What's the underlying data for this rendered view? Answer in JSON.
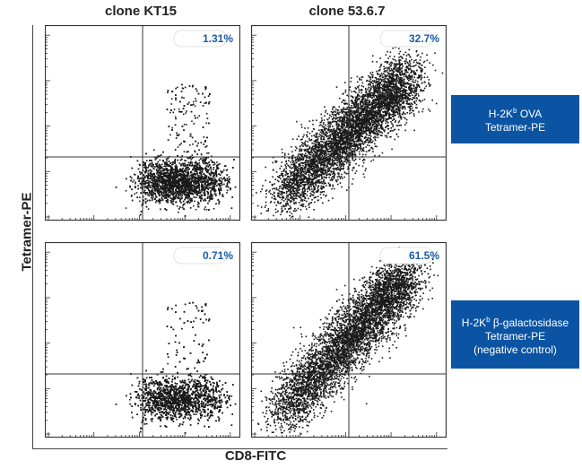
{
  "chart_data": {
    "type": "scatter",
    "title": "",
    "xlabel": "CD8-FITC",
    "ylabel": "Tetramer-PE",
    "columns": [
      "clone KT15",
      "clone 53.6.7"
    ],
    "rows": [
      {
        "label_main": "H-2K",
        "label_sup": "b",
        "label_rest": " OVA",
        "label_line2": "Tetramer-PE",
        "label_line3": ""
      },
      {
        "label_main": "H-2K",
        "label_sup": "b",
        "label_rest": " β-galactosidase",
        "label_line2": "Tetramer-PE",
        "label_line3": "(negative control)"
      }
    ],
    "panels": [
      {
        "row": 0,
        "col": 0,
        "percent": "1.31%",
        "shape": "blob-low",
        "positive_fraction": 0.0131
      },
      {
        "row": 0,
        "col": 1,
        "percent": "32.7%",
        "shape": "diagonal",
        "positive_fraction": 0.327
      },
      {
        "row": 1,
        "col": 0,
        "percent": "0.71%",
        "shape": "blob-low",
        "positive_fraction": 0.0071
      },
      {
        "row": 1,
        "col": 1,
        "percent": "61.5%",
        "shape": "diagonal",
        "positive_fraction": 0.615
      }
    ],
    "quadrant_gate": {
      "x": 0.5,
      "y": 0.5
    },
    "colors": {
      "dots": "#1a1a1a",
      "percent_text": "#1a5ca8",
      "badge": "#0b54a3"
    }
  }
}
